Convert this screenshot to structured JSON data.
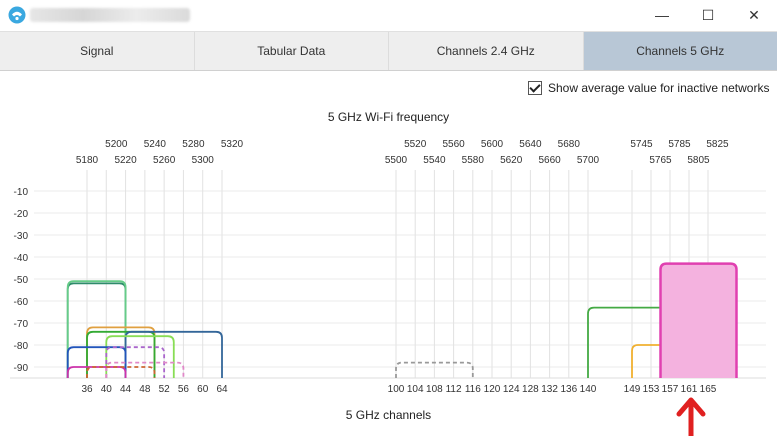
{
  "window": {
    "minimize_label": "—",
    "maximize_label": "☐",
    "close_label": "✕",
    "app_icon": "app-icon"
  },
  "tabs": [
    {
      "label": "Signal",
      "active": false
    },
    {
      "label": "Tabular Data",
      "active": false
    },
    {
      "label": "Channels 2.4 GHz",
      "active": false
    },
    {
      "label": "Channels 5 GHz",
      "active": true
    }
  ],
  "options": {
    "show_average_label": "Show average value for inactive networks",
    "show_average_checked": true
  },
  "chart_data": {
    "type": "area",
    "title": "5 GHz Wi-Fi frequency",
    "xlabel": "5 GHz channels",
    "ylim": [
      -95,
      0
    ],
    "y_ticks": [
      -10,
      -20,
      -30,
      -40,
      -50,
      -60,
      -70,
      -80,
      -90
    ],
    "freq_top_row": [
      "5200",
      "5240",
      "5280",
      "5320",
      "5520",
      "5560",
      "5600",
      "5640",
      "5680",
      "5745",
      "5785",
      "5825"
    ],
    "freq_bottom_row": [
      "5180",
      "5220",
      "5260",
      "5300",
      "5500",
      "5540",
      "5580",
      "5620",
      "5660",
      "5700",
      "5765",
      "5805"
    ],
    "channels": [
      "36",
      "40",
      "44",
      "48",
      "52",
      "56",
      "60",
      "64",
      "100",
      "104",
      "108",
      "112",
      "116",
      "120",
      "124",
      "128",
      "132",
      "136",
      "140",
      "149",
      "153",
      "157",
      "161",
      "165"
    ],
    "networks": [
      {
        "channel_from": 32,
        "channel_to": 44,
        "level": -52,
        "color": "#2e8b6b",
        "style": "solid"
      },
      {
        "channel_from": 32,
        "channel_to": 44,
        "level": -51,
        "color": "#66cc88",
        "style": "solid"
      },
      {
        "channel_from": 36,
        "channel_to": 50,
        "level": -72,
        "color": "#e0a040",
        "style": "solid"
      },
      {
        "channel_from": 36,
        "channel_to": 50,
        "level": -74,
        "color": "#33aa33",
        "style": "solid"
      },
      {
        "channel_from": 44,
        "channel_to": 64,
        "level": -74,
        "color": "#336699",
        "style": "solid"
      },
      {
        "channel_from": 40,
        "channel_to": 54,
        "level": -76,
        "color": "#88dd55",
        "style": "solid"
      },
      {
        "channel_from": 32,
        "channel_to": 44,
        "level": -81,
        "color": "#2255bb",
        "style": "solid"
      },
      {
        "channel_from": 40,
        "channel_to": 52,
        "level": -81,
        "color": "#aa66cc",
        "style": "dashed"
      },
      {
        "channel_from": 40,
        "channel_to": 56,
        "level": -88,
        "color": "#e088c8",
        "style": "dashed"
      },
      {
        "channel_from": 32,
        "channel_to": 44,
        "level": -90,
        "color": "#cc33aa",
        "style": "solid"
      },
      {
        "channel_from": 36,
        "channel_to": 50,
        "level": -90,
        "color": "#cc6633",
        "style": "dashed"
      },
      {
        "channel_from": 100,
        "channel_to": 116,
        "level": -88,
        "color": "#999999",
        "style": "dashed"
      },
      {
        "channel_from": 140,
        "channel_to": 156,
        "level": -63,
        "color": "#44aa44",
        "style": "solid"
      },
      {
        "channel_from": 149,
        "channel_to": 157,
        "level": -80,
        "color": "#f0b030",
        "style": "solid"
      },
      {
        "channel_from": 155,
        "channel_to": 163,
        "level": -71,
        "color": "#dd8833",
        "style": "solid"
      },
      {
        "channel_from": 155,
        "channel_to": 171,
        "level": -43,
        "color": "#e040b0",
        "style": "filled",
        "fill": "#f4b2df"
      }
    ]
  },
  "annotation": {
    "arrow_color": "#e02020",
    "arrow_channel": 161,
    "arrow_name": "arrow-up-icon"
  }
}
